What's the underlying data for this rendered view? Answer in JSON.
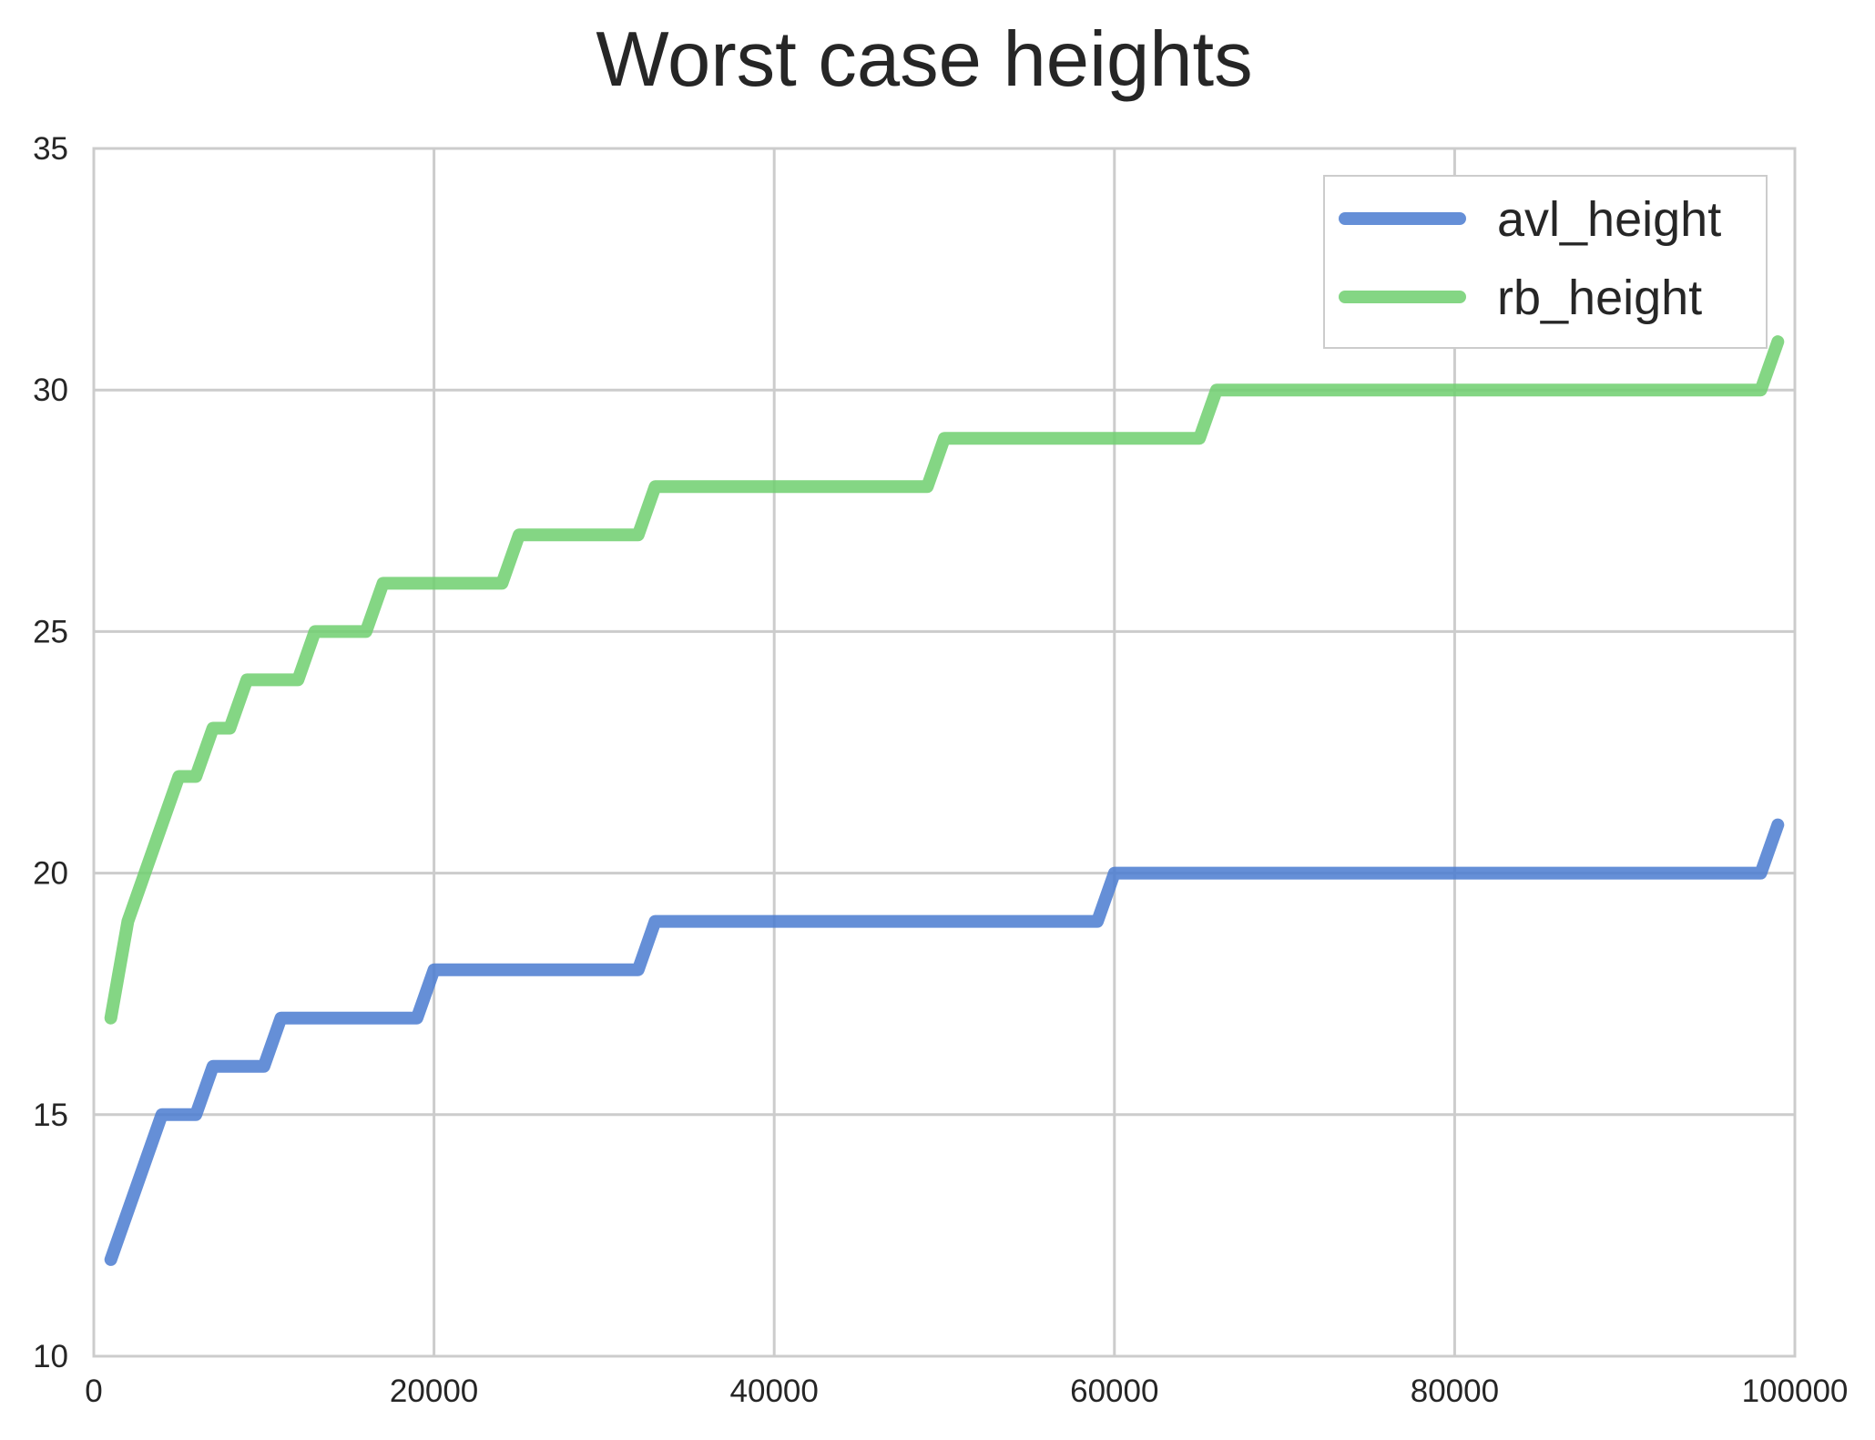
{
  "chart_data": {
    "type": "line",
    "title": "Worst case heights",
    "xlabel": "",
    "ylabel": "",
    "xlim": [
      0,
      100000
    ],
    "ylim": [
      10,
      35
    ],
    "x_ticks": [
      "0",
      "20000",
      "40000",
      "60000",
      "80000",
      "100000"
    ],
    "x_tick_values": [
      0,
      20000,
      40000,
      60000,
      80000,
      100000
    ],
    "y_ticks": [
      "10",
      "15",
      "20",
      "25",
      "30",
      "35"
    ],
    "y_tick_values": [
      10,
      15,
      20,
      25,
      30,
      35
    ],
    "grid": true,
    "legend_position": "top-right",
    "series": [
      {
        "name": "avl_height",
        "color": "#4a7bd0",
        "points": [
          [
            1000,
            12
          ],
          [
            4000,
            15
          ],
          [
            6000,
            15
          ],
          [
            7000,
            16
          ],
          [
            10000,
            16
          ],
          [
            11000,
            17
          ],
          [
            19000,
            17
          ],
          [
            20000,
            18
          ],
          [
            32000,
            18
          ],
          [
            33000,
            19
          ],
          [
            59000,
            19
          ],
          [
            60000,
            20
          ],
          [
            98000,
            20
          ],
          [
            99000,
            21
          ]
        ]
      },
      {
        "name": "rb_height",
        "color": "#6fcf6f",
        "points": [
          [
            1000,
            17
          ],
          [
            2000,
            19
          ],
          [
            5000,
            22
          ],
          [
            6000,
            22
          ],
          [
            7000,
            23
          ],
          [
            8000,
            23
          ],
          [
            9000,
            24
          ],
          [
            12000,
            24
          ],
          [
            13000,
            25
          ],
          [
            16000,
            25
          ],
          [
            17000,
            26
          ],
          [
            24000,
            26
          ],
          [
            25000,
            27
          ],
          [
            32000,
            27
          ],
          [
            33000,
            28
          ],
          [
            49000,
            28
          ],
          [
            50000,
            29
          ],
          [
            65000,
            29
          ],
          [
            66000,
            30
          ],
          [
            98000,
            30
          ],
          [
            99000,
            31
          ]
        ]
      }
    ]
  }
}
